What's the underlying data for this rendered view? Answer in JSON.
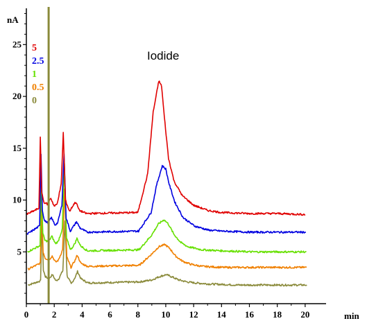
{
  "chart_data": {
    "type": "line",
    "xlabel": "min",
    "ylabel": "nA",
    "xlim": [
      0,
      21.5
    ],
    "ylim": [
      0,
      28.5
    ],
    "xticks": [
      "0",
      "2",
      "4",
      "6",
      "8",
      "10",
      "12",
      "14",
      "16",
      "18",
      "20"
    ],
    "yticks": [
      "5",
      "10",
      "15",
      "20",
      "25"
    ],
    "annotation": "Iodide",
    "legend_placement": "top-left",
    "series": [
      {
        "name": "5",
        "color": "#e00000",
        "baseline": 8.6,
        "shift": 0.0,
        "x": [
          0.0,
          0.9,
          1.0,
          1.1,
          1.25,
          1.5,
          1.75,
          2.0,
          2.2,
          2.5,
          2.65,
          2.8,
          3.1,
          3.4,
          3.55,
          3.8,
          4.3,
          8.0,
          8.7,
          9.1,
          9.5,
          9.7,
          9.9,
          10.2,
          10.6,
          11.2,
          12.0,
          13.0,
          14.0,
          16.0,
          18.0,
          20.0
        ],
        "y": [
          8.6,
          9.2,
          16.0,
          10.8,
          9.8,
          9.6,
          10.2,
          9.4,
          9.6,
          11.5,
          16.5,
          10.0,
          8.9,
          9.6,
          9.8,
          9.0,
          8.7,
          8.8,
          12.5,
          18.5,
          21.5,
          21.0,
          18.0,
          14.0,
          11.8,
          10.4,
          9.5,
          9.0,
          8.8,
          8.7,
          8.7,
          8.6
        ]
      },
      {
        "name": "2.5",
        "color": "#0000e0",
        "baseline": 6.9,
        "shift": 0.05,
        "x": [
          0.0,
          0.9,
          1.0,
          1.1,
          1.25,
          1.5,
          1.75,
          2.0,
          2.2,
          2.5,
          2.65,
          2.8,
          3.1,
          3.4,
          3.55,
          3.8,
          4.3,
          8.0,
          8.9,
          9.3,
          9.7,
          9.95,
          10.2,
          10.6,
          11.2,
          12.0,
          13.0,
          14.0,
          16.0,
          18.0,
          20.0
        ],
        "y": [
          6.7,
          7.5,
          14.5,
          9.0,
          8.0,
          7.8,
          8.3,
          7.6,
          7.8,
          9.5,
          14.5,
          8.3,
          7.0,
          7.6,
          7.9,
          7.3,
          6.9,
          7.0,
          8.8,
          11.5,
          13.3,
          13.0,
          11.5,
          9.8,
          8.3,
          7.5,
          7.1,
          7.0,
          6.9,
          6.9,
          6.9
        ]
      },
      {
        "name": "1",
        "color": "#66e000",
        "baseline": 5.0,
        "shift": 0.08,
        "x": [
          0.0,
          0.9,
          1.0,
          1.1,
          1.25,
          1.5,
          1.75,
          2.0,
          2.2,
          2.5,
          2.65,
          2.8,
          3.1,
          3.4,
          3.55,
          3.8,
          4.3,
          8.0,
          8.9,
          9.4,
          9.8,
          10.1,
          10.5,
          11.0,
          11.5,
          12.5,
          14.0,
          16.0,
          18.0,
          20.0
        ],
        "y": [
          5.0,
          5.6,
          12.0,
          6.8,
          6.1,
          6.0,
          6.5,
          5.8,
          6.0,
          7.2,
          13.5,
          6.3,
          5.2,
          5.8,
          6.3,
          5.6,
          5.1,
          5.2,
          6.6,
          7.7,
          8.1,
          7.7,
          6.7,
          5.9,
          5.5,
          5.2,
          5.1,
          5.0,
          5.0,
          5.0
        ]
      },
      {
        "name": "0.5",
        "color": "#f08000",
        "baseline": 3.4,
        "shift": 0.1,
        "x": [
          0.0,
          0.9,
          1.0,
          1.1,
          1.25,
          1.5,
          1.75,
          2.0,
          2.2,
          2.5,
          2.65,
          2.8,
          3.1,
          3.4,
          3.55,
          3.8,
          4.3,
          8.0,
          8.9,
          9.4,
          9.85,
          10.2,
          10.6,
          11.1,
          11.7,
          12.5,
          14.0,
          16.0,
          18.0,
          20.0
        ],
        "y": [
          3.3,
          3.9,
          10.5,
          5.0,
          4.4,
          4.2,
          4.6,
          4.0,
          4.2,
          5.2,
          11.0,
          4.5,
          3.5,
          4.2,
          4.7,
          3.9,
          3.6,
          3.7,
          4.8,
          5.5,
          5.7,
          5.3,
          4.6,
          4.1,
          3.8,
          3.6,
          3.5,
          3.5,
          3.5,
          3.5
        ]
      },
      {
        "name": "0",
        "color": "#8a8a3a",
        "baseline": 1.8,
        "shift": 0.12,
        "x": [
          0.0,
          0.9,
          1.0,
          1.1,
          1.25,
          1.5,
          1.75,
          2.0,
          2.2,
          2.5,
          2.65,
          2.8,
          3.1,
          3.4,
          3.55,
          3.8,
          4.3,
          8.0,
          8.9,
          9.4,
          9.9,
          10.3,
          10.8,
          11.4,
          12.0,
          13.0,
          15.0,
          17.0,
          19.0,
          20.0
        ],
        "y": [
          1.8,
          2.2,
          8.0,
          3.2,
          2.6,
          2.4,
          2.8,
          2.2,
          2.4,
          3.2,
          8.0,
          2.7,
          1.9,
          2.6,
          3.1,
          2.4,
          2.0,
          2.1,
          2.3,
          2.6,
          2.8,
          2.6,
          2.3,
          2.1,
          2.0,
          1.9,
          1.8,
          1.8,
          1.8,
          1.8
        ]
      }
    ]
  }
}
